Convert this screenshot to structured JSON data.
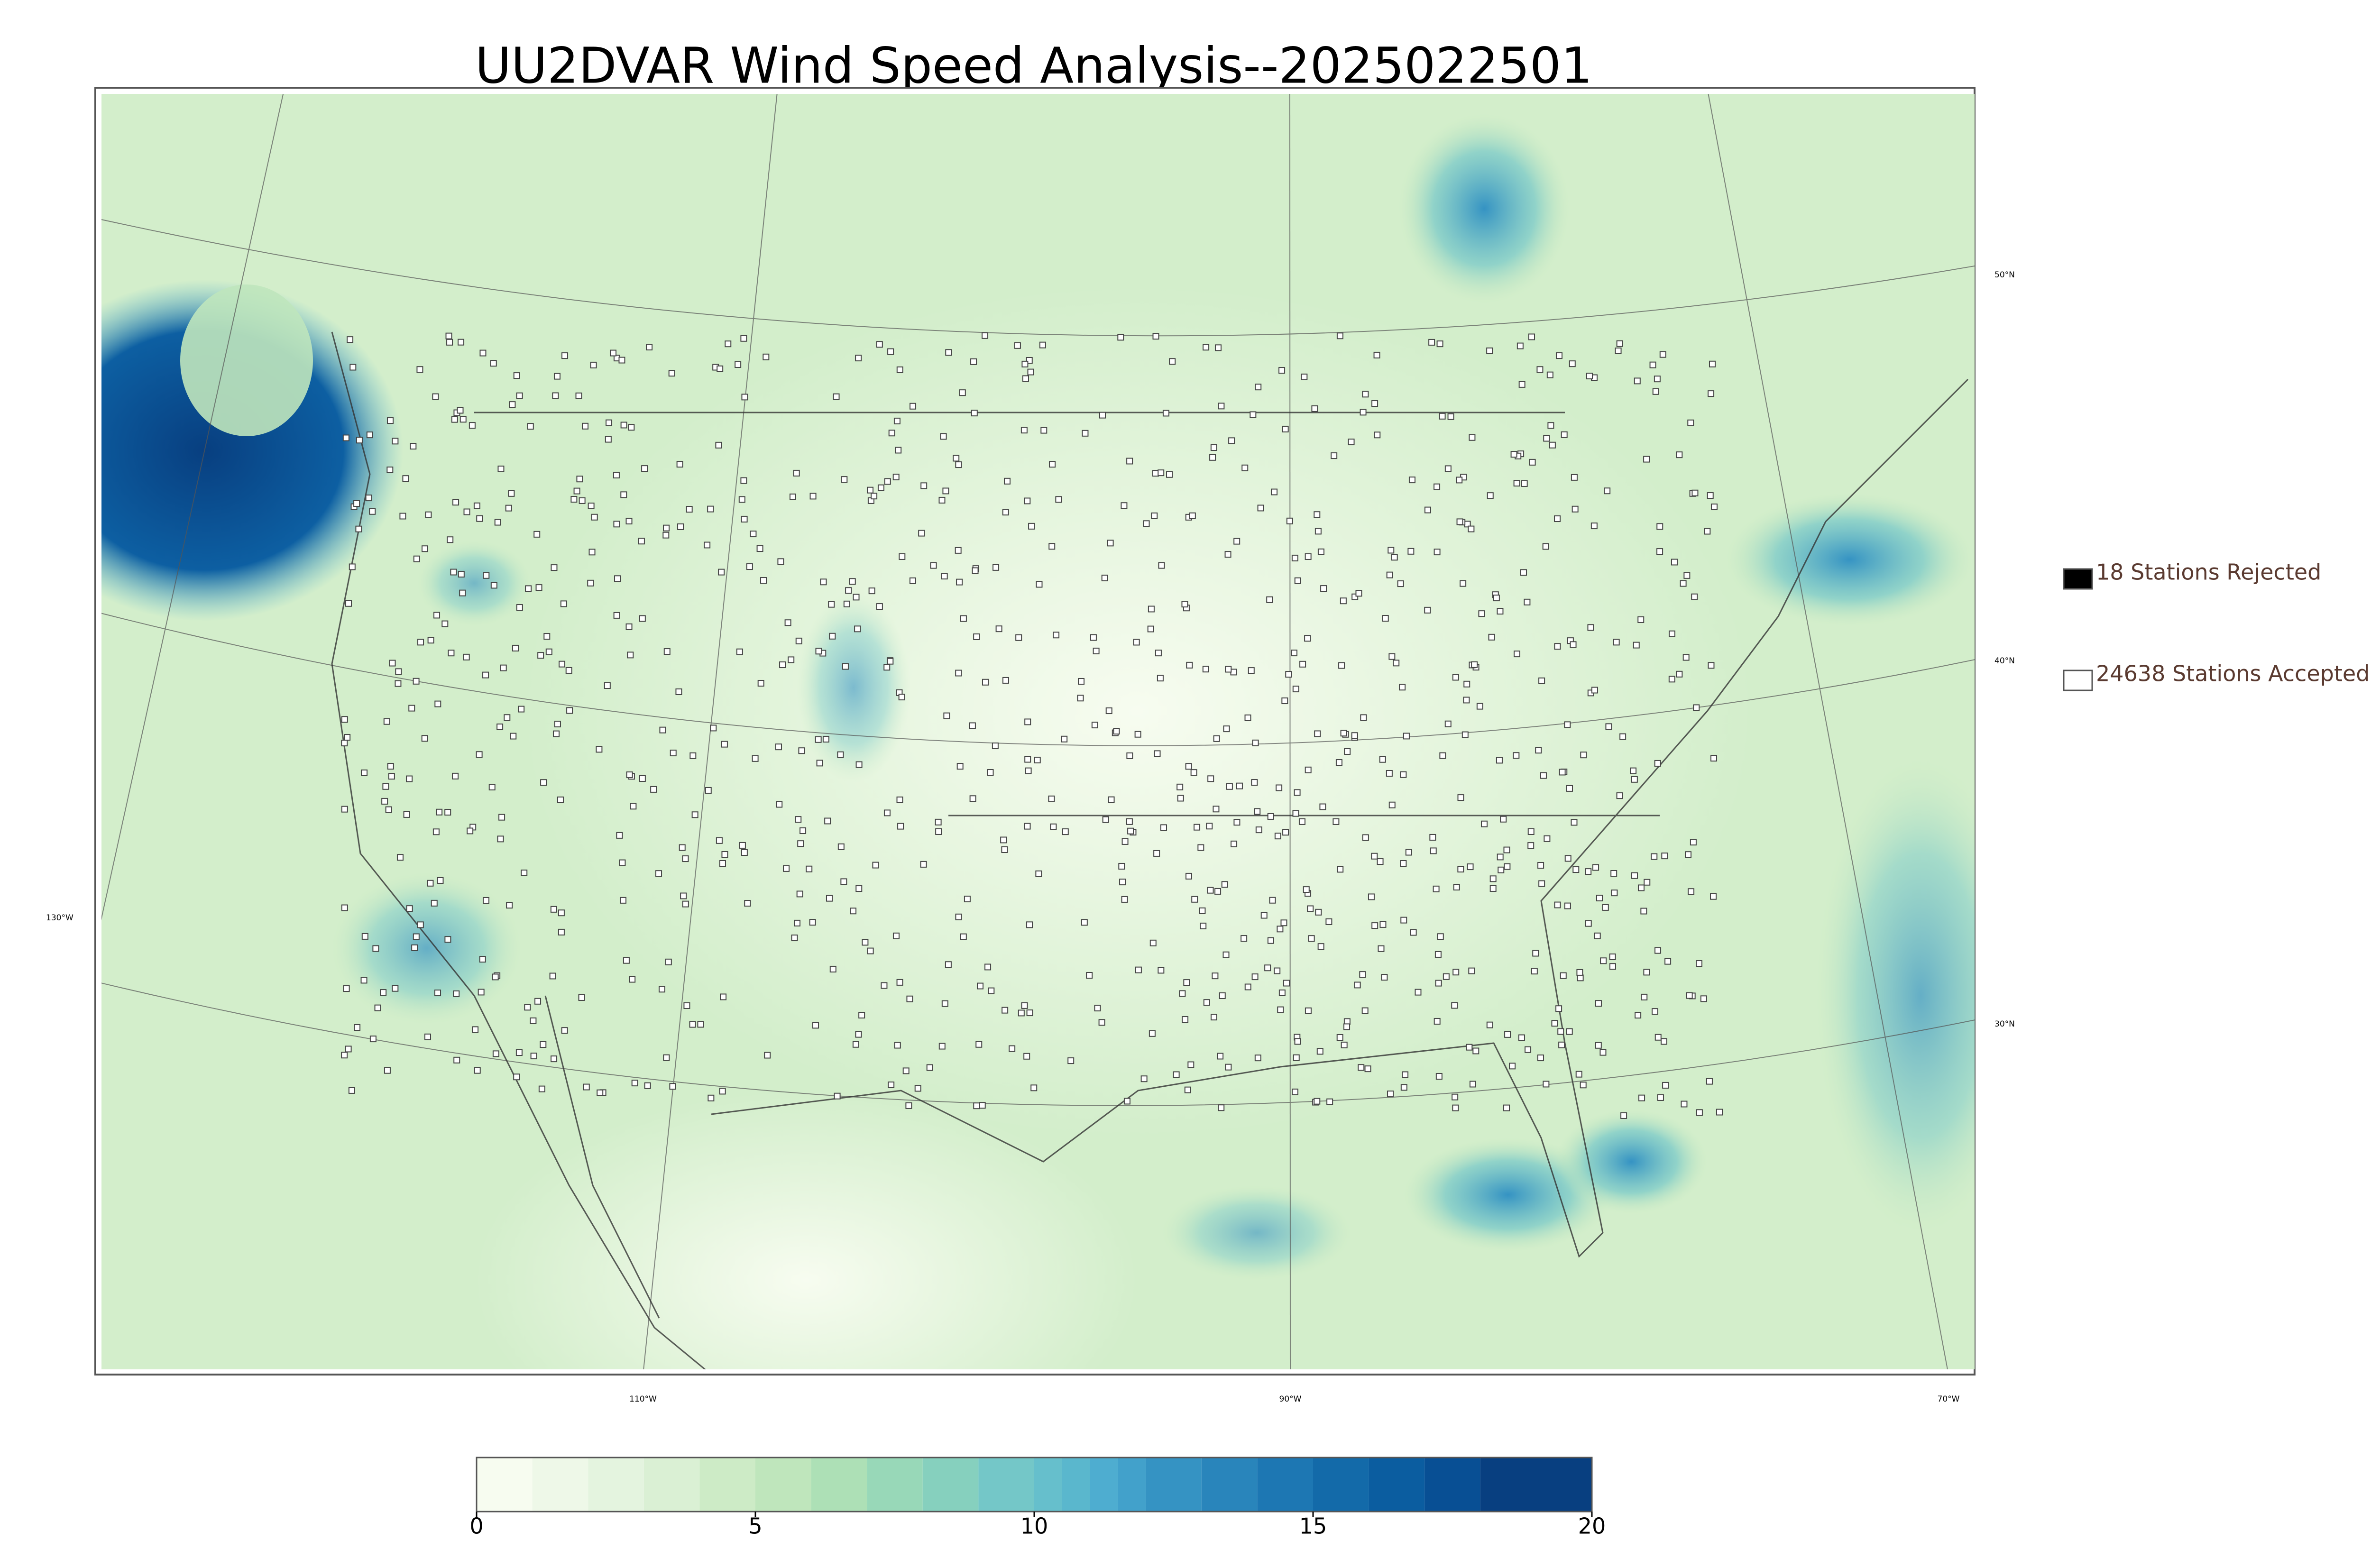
{
  "title": "UU2DVAR Wind Speed Analysis--2025022501",
  "legend": [
    {
      "label": "18 Stations Rejected",
      "color": "#000000"
    },
    {
      "label": "24638 Stations Accepted",
      "color": "#ffffff"
    }
  ],
  "latitude_labels": [
    "50°N",
    "40°N",
    "30°N"
  ],
  "longitude_labels": [
    "130°W",
    "110°W",
    "90°W",
    "70°W"
  ],
  "colorbar": {
    "range": [
      0,
      20
    ],
    "ticks": [
      0,
      5,
      10,
      15,
      20
    ],
    "boundaries": [
      0,
      1,
      2,
      3,
      4,
      5,
      6,
      7,
      8,
      9,
      10,
      10.5,
      11,
      11.5,
      12,
      13,
      14,
      15,
      16,
      17,
      18,
      20
    ],
    "colors": [
      "#f7fcf0",
      "#eef8e8",
      "#e4f4df",
      "#daf0d4",
      "#cdebc6",
      "#bfe6bc",
      "#ade0b6",
      "#98d8b8",
      "#86d0be",
      "#74c7c8",
      "#66bfcc",
      "#5ab7cd",
      "#4eadd0",
      "#42a1cb",
      "#3593c3",
      "#2985bb",
      "#1d77b3",
      "#136aa9",
      "#0b5da0",
      "#084f94",
      "#083f80"
    ]
  }
}
